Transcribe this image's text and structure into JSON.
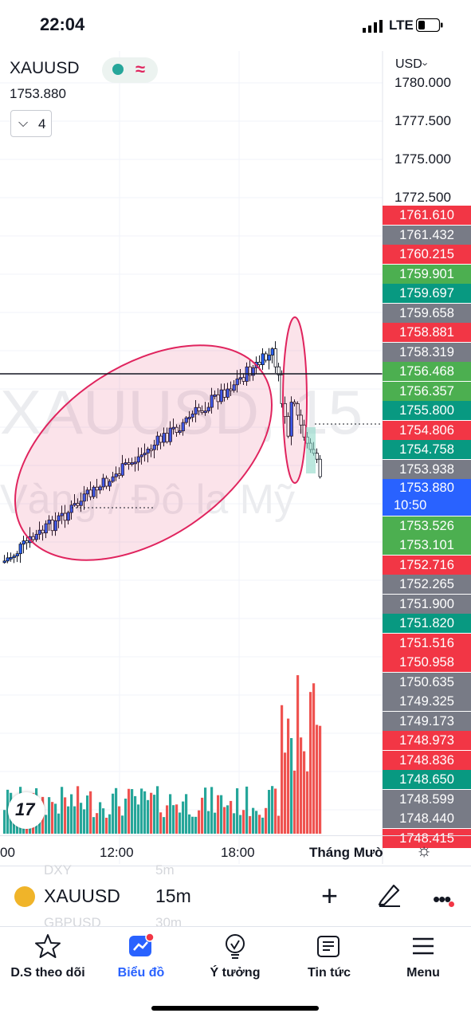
{
  "status": {
    "time": "22:04",
    "network": "LTE"
  },
  "chart": {
    "symbol": "XAUUSD",
    "current_price": "1753.880",
    "indicator_count": "4",
    "currency": "USD",
    "currency_chevron": "›",
    "watermark_symbol": "XAUUSD, 15",
    "watermark_desc": "Vàng / Đô la Mỹ",
    "axis_prices": [
      "1780.000",
      "1777.500",
      "1775.000",
      "1772.500"
    ],
    "price_labels": [
      {
        "value": "1761.610",
        "color": "#f23645"
      },
      {
        "value": "1761.432",
        "color": "#787b86"
      },
      {
        "value": "1760.215",
        "color": "#f23645"
      },
      {
        "value": "1759.901",
        "color": "#4caf50"
      },
      {
        "value": "1759.697",
        "color": "#089981"
      },
      {
        "value": "1759.658",
        "color": "#787b86"
      },
      {
        "value": "1758.881",
        "color": "#f23645"
      },
      {
        "value": "1758.319",
        "color": "#787b86"
      },
      {
        "value": "1756.468",
        "color": "#4caf50"
      },
      {
        "value": "1756.357",
        "color": "#4caf50"
      },
      {
        "value": "1755.800",
        "color": "#089981"
      },
      {
        "value": "1754.806",
        "color": "#f23645"
      },
      {
        "value": "1754.758",
        "color": "#089981"
      },
      {
        "value": "1753.938",
        "color": "#787b86"
      },
      {
        "value": "1753.880",
        "color": "#2962ff",
        "sub": "10:50"
      },
      {
        "value": "1753.526",
        "color": "#4caf50"
      },
      {
        "value": "1753.101",
        "color": "#4caf50"
      },
      {
        "value": "1752.716",
        "color": "#f23645"
      },
      {
        "value": "1752.265",
        "color": "#787b86"
      },
      {
        "value": "1751.900",
        "color": "#787b86"
      },
      {
        "value": "1751.820",
        "color": "#089981"
      },
      {
        "value": "1751.516",
        "color": "#f23645"
      },
      {
        "value": "1750.958",
        "color": "#f23645"
      },
      {
        "value": "1750.635",
        "color": "#787b86"
      },
      {
        "value": "1749.325",
        "color": "#787b86"
      },
      {
        "value": "1749.173",
        "color": "#787b86"
      },
      {
        "value": "1748.973",
        "color": "#f23645"
      },
      {
        "value": "1748.836",
        "color": "#f23645"
      },
      {
        "value": "1748.650",
        "color": "#089981"
      },
      {
        "value": "1748.599",
        "color": "#787b86"
      },
      {
        "value": "1748.440",
        "color": "#787b86"
      },
      {
        "value": "1748.415",
        "color": "#f23645"
      }
    ],
    "time_labels": [
      "00",
      "12:00",
      "18:00",
      "Tháng Mười"
    ]
  },
  "toolbar": {
    "symbol": "XAUUSD",
    "interval": "15m",
    "ghost_top_symbol": "DXY",
    "ghost_top_interval": "5m",
    "ghost_bottom_symbol": "GBPUSD",
    "ghost_bottom_interval": "30m",
    "plus": "+"
  },
  "nav": [
    {
      "label": "D.S theo dõi",
      "icon": "star-icon"
    },
    {
      "label": "Biểu đồ",
      "icon": "chart-icon"
    },
    {
      "label": "Ý tưởng",
      "icon": "lightbulb-icon"
    },
    {
      "label": "Tin tức",
      "icon": "news-icon"
    },
    {
      "label": "Menu",
      "icon": "hamburger-icon"
    }
  ],
  "colors": {
    "up": "#26a69a",
    "down": "#ef5350",
    "accent": "#2962ff",
    "ellipse": "#e0245e"
  }
}
